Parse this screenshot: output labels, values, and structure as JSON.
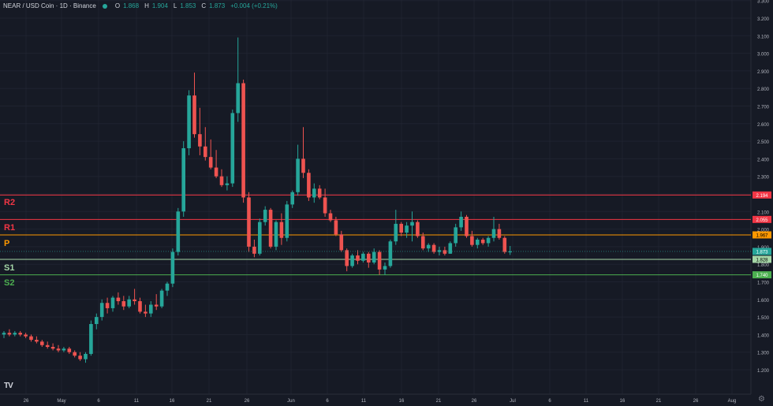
{
  "header": {
    "symbol": "NEAR / USD Coin · 1D · Binance",
    "open_label": "O",
    "open": "1.868",
    "high_label": "H",
    "high": "1.904",
    "low_label": "L",
    "low": "1.853",
    "close_label": "C",
    "close": "1.873",
    "change": "+0.004 (+0.21%)"
  },
  "logo": "TV",
  "colors": {
    "up": "#26a69a",
    "down": "#ef5350",
    "r2": "#f23645",
    "r1": "#f23645",
    "p": "#ff9800",
    "s1": "#a5d6a7",
    "s2": "#4caf50"
  },
  "chart_data": {
    "type": "candlestick",
    "ylim": [
      1.15,
      3.32
    ],
    "y_ticks": [
      "1.200",
      "1.300",
      "1.400",
      "1.500",
      "1.600",
      "1.700",
      "1.800",
      "1.900",
      "2.000",
      "2.100",
      "2.200",
      "2.300",
      "2.400",
      "2.500",
      "2.600",
      "2.700",
      "2.800",
      "2.900",
      "3.000",
      "3.100",
      "3.200",
      "3.300"
    ],
    "x_ticks": [
      "26",
      "May",
      "6",
      "11",
      "16",
      "21",
      "26",
      "Jun",
      "6",
      "11",
      "16",
      "21",
      "26",
      "Jul",
      "6",
      "11",
      "16",
      "21",
      "26",
      "Aug"
    ],
    "levels": [
      {
        "name": "R2",
        "value": 2.194,
        "label": "2.194"
      },
      {
        "name": "R1",
        "value": 2.055,
        "label": "2.055"
      },
      {
        "name": "P",
        "value": 1.967,
        "label": "1.967"
      },
      {
        "name": "S1",
        "value": 1.828,
        "label": "1.828"
      },
      {
        "name": "S2",
        "value": 1.74,
        "label": "1.740"
      }
    ],
    "last_price": {
      "value": 1.873,
      "label": "1.873"
    },
    "candles": [
      [
        1.4,
        1.42,
        1.38,
        1.41
      ],
      [
        1.41,
        1.43,
        1.39,
        1.4
      ],
      [
        1.4,
        1.42,
        1.39,
        1.41
      ],
      [
        1.41,
        1.42,
        1.39,
        1.4
      ],
      [
        1.4,
        1.41,
        1.38,
        1.39
      ],
      [
        1.39,
        1.4,
        1.36,
        1.37
      ],
      [
        1.37,
        1.39,
        1.35,
        1.36
      ],
      [
        1.36,
        1.37,
        1.33,
        1.34
      ],
      [
        1.34,
        1.36,
        1.32,
        1.33
      ],
      [
        1.33,
        1.35,
        1.31,
        1.32
      ],
      [
        1.32,
        1.34,
        1.3,
        1.31
      ],
      [
        1.31,
        1.33,
        1.3,
        1.32
      ],
      [
        1.32,
        1.33,
        1.29,
        1.3
      ],
      [
        1.3,
        1.31,
        1.27,
        1.28
      ],
      [
        1.28,
        1.3,
        1.25,
        1.26
      ],
      [
        1.26,
        1.3,
        1.24,
        1.29
      ],
      [
        1.29,
        1.48,
        1.28,
        1.46
      ],
      [
        1.46,
        1.52,
        1.43,
        1.5
      ],
      [
        1.5,
        1.6,
        1.48,
        1.58
      ],
      [
        1.58,
        1.61,
        1.52,
        1.55
      ],
      [
        1.55,
        1.62,
        1.53,
        1.61
      ],
      [
        1.61,
        1.64,
        1.57,
        1.59
      ],
      [
        1.59,
        1.62,
        1.54,
        1.56
      ],
      [
        1.56,
        1.62,
        1.55,
        1.6
      ],
      [
        1.6,
        1.66,
        1.57,
        1.59
      ],
      [
        1.59,
        1.61,
        1.52,
        1.53
      ],
      [
        1.53,
        1.57,
        1.5,
        1.52
      ],
      [
        1.52,
        1.59,
        1.5,
        1.57
      ],
      [
        1.57,
        1.63,
        1.54,
        1.56
      ],
      [
        1.56,
        1.66,
        1.55,
        1.65
      ],
      [
        1.65,
        1.7,
        1.62,
        1.69
      ],
      [
        1.69,
        1.89,
        1.67,
        1.87
      ],
      [
        1.87,
        2.12,
        1.85,
        2.1
      ],
      [
        2.1,
        2.5,
        2.07,
        2.46
      ],
      [
        2.46,
        2.79,
        2.42,
        2.76
      ],
      [
        2.76,
        2.89,
        2.52,
        2.54
      ],
      [
        2.54,
        2.69,
        2.42,
        2.47
      ],
      [
        2.47,
        2.58,
        2.39,
        2.41
      ],
      [
        2.41,
        2.51,
        2.34,
        2.35
      ],
      [
        2.35,
        2.45,
        2.29,
        2.3
      ],
      [
        2.3,
        2.34,
        2.24,
        2.25
      ],
      [
        2.25,
        2.3,
        2.22,
        2.26
      ],
      [
        2.26,
        2.68,
        2.24,
        2.66
      ],
      [
        2.66,
        3.09,
        2.61,
        2.83
      ],
      [
        2.83,
        2.85,
        2.15,
        2.18
      ],
      [
        2.18,
        2.21,
        1.87,
        1.9
      ],
      [
        1.9,
        1.94,
        1.84,
        1.86
      ],
      [
        1.86,
        2.06,
        1.85,
        2.04
      ],
      [
        2.04,
        2.13,
        2.02,
        2.11
      ],
      [
        2.11,
        2.12,
        1.89,
        1.9
      ],
      [
        1.9,
        2.05,
        1.88,
        2.04
      ],
      [
        2.04,
        2.09,
        1.91,
        1.95
      ],
      [
        1.95,
        2.16,
        1.93,
        2.14
      ],
      [
        2.14,
        2.22,
        2.12,
        2.21
      ],
      [
        2.21,
        2.48,
        2.19,
        2.4
      ],
      [
        2.4,
        2.58,
        2.29,
        2.32
      ],
      [
        2.32,
        2.34,
        2.16,
        2.18
      ],
      [
        2.18,
        2.26,
        2.15,
        2.23
      ],
      [
        2.23,
        2.25,
        2.17,
        2.18
      ],
      [
        2.18,
        2.23,
        2.07,
        2.09
      ],
      [
        2.09,
        2.11,
        2.04,
        2.05
      ],
      [
        2.05,
        2.07,
        1.96,
        1.97
      ],
      [
        1.97,
        1.99,
        1.87,
        1.88
      ],
      [
        1.88,
        1.89,
        1.76,
        1.79
      ],
      [
        1.79,
        1.86,
        1.78,
        1.85
      ],
      [
        1.85,
        1.88,
        1.8,
        1.82
      ],
      [
        1.82,
        1.87,
        1.81,
        1.86
      ],
      [
        1.86,
        1.87,
        1.78,
        1.81
      ],
      [
        1.81,
        1.89,
        1.8,
        1.87
      ],
      [
        1.87,
        1.88,
        1.74,
        1.77
      ],
      [
        1.77,
        1.81,
        1.74,
        1.79
      ],
      [
        1.79,
        1.94,
        1.78,
        1.93
      ],
      [
        1.93,
        2.11,
        1.91,
        2.03
      ],
      [
        2.03,
        2.04,
        1.96,
        1.98
      ],
      [
        1.98,
        2.04,
        1.95,
        2.02
      ],
      [
        2.02,
        2.1,
        1.93,
        2.04
      ],
      [
        2.04,
        2.05,
        1.95,
        1.96
      ],
      [
        1.96,
        1.98,
        1.88,
        1.89
      ],
      [
        1.89,
        1.92,
        1.87,
        1.91
      ],
      [
        1.91,
        1.92,
        1.86,
        1.87
      ],
      [
        1.87,
        1.9,
        1.85,
        1.88
      ],
      [
        1.88,
        1.9,
        1.85,
        1.86
      ],
      [
        1.86,
        1.93,
        1.86,
        1.92
      ],
      [
        1.92,
        2.03,
        1.9,
        2.01
      ],
      [
        2.01,
        2.1,
        1.99,
        2.07
      ],
      [
        2.07,
        2.08,
        1.95,
        1.96
      ],
      [
        1.96,
        1.99,
        1.9,
        1.91
      ],
      [
        1.91,
        1.95,
        1.89,
        1.94
      ],
      [
        1.94,
        1.95,
        1.91,
        1.92
      ],
      [
        1.92,
        1.96,
        1.9,
        1.95
      ],
      [
        1.95,
        2.07,
        1.93,
        2.0
      ],
      [
        2.0,
        2.03,
        1.94,
        1.95
      ],
      [
        1.95,
        1.96,
        1.86,
        1.87
      ],
      [
        1.868,
        1.904,
        1.853,
        1.873
      ]
    ]
  }
}
